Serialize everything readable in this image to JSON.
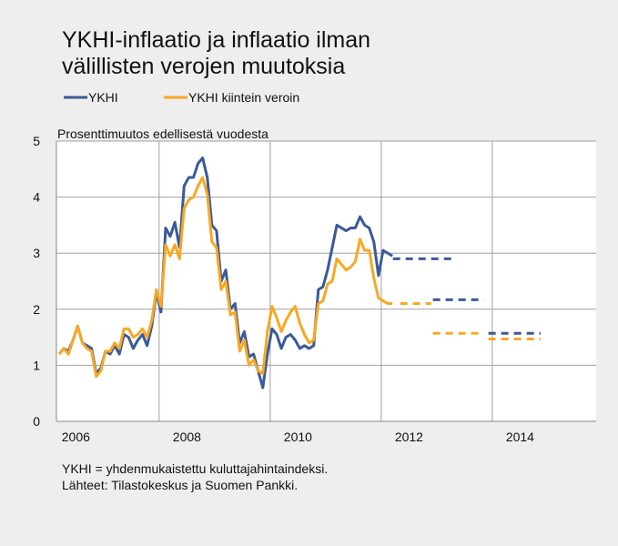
{
  "chart_data": {
    "type": "line",
    "title": [
      "YKHI-inflaatio ja inflaatio ilman",
      "välillisten verojen muutoksia"
    ],
    "y_axis_label": "Prosenttimuutos edellisestä vuodesta",
    "notes": [
      "YKHI = yhdenmukaistettu kuluttajahintaindeksi.",
      "Lähteet: Tilastokeskus ja Suomen Pankki."
    ],
    "x": [
      2006.2,
      2006.283,
      2006.367,
      2006.45,
      2006.533,
      2006.617,
      2006.7,
      2006.783,
      2006.867,
      2006.95,
      2007.033,
      2007.117,
      2007.2,
      2007.283,
      2007.367,
      2007.45,
      2007.533,
      2007.617,
      2007.7,
      2007.783,
      2007.867,
      2007.95,
      2008.033,
      2008.117,
      2008.2,
      2008.283,
      2008.367,
      2008.45,
      2008.533,
      2008.617,
      2008.7,
      2008.783,
      2008.867,
      2008.95,
      2009.033,
      2009.117,
      2009.2,
      2009.283,
      2009.367,
      2009.45,
      2009.533,
      2009.617,
      2009.7,
      2009.783,
      2009.867,
      2009.95,
      2010.033,
      2010.117,
      2010.2,
      2010.283,
      2010.367,
      2010.45,
      2010.533,
      2010.617,
      2010.7,
      2010.783,
      2010.867,
      2010.95,
      2011.033,
      2011.117,
      2011.2,
      2011.283,
      2011.367,
      2011.45,
      2011.533,
      2011.617,
      2011.7,
      2011.783,
      2011.867,
      2011.95,
      2012.033,
      2012.117,
      2012.2
    ],
    "series": [
      {
        "name": "YKHI",
        "color": "#3a5a98",
        "values": [
          1.2,
          1.3,
          1.25,
          1.45,
          1.7,
          1.4,
          1.35,
          1.3,
          0.85,
          0.95,
          1.25,
          1.2,
          1.35,
          1.2,
          1.55,
          1.5,
          1.3,
          1.45,
          1.55,
          1.35,
          1.7,
          2.3,
          1.95,
          3.45,
          3.3,
          3.55,
          3.1,
          4.2,
          4.35,
          4.35,
          4.6,
          4.7,
          4.35,
          3.5,
          3.4,
          2.5,
          2.7,
          2.0,
          2.1,
          1.4,
          1.6,
          1.15,
          1.2,
          0.9,
          0.6,
          1.2,
          1.65,
          1.55,
          1.3,
          1.5,
          1.55,
          1.45,
          1.3,
          1.35,
          1.3,
          1.35,
          2.35,
          2.4,
          2.7,
          3.1,
          3.5,
          3.45,
          3.4,
          3.45,
          3.45,
          3.65,
          3.5,
          3.45,
          3.2,
          2.6,
          3.05,
          3.0,
          2.95
        ],
        "forecast": [
          {
            "x": [
              2012.21,
              2013.33
            ],
            "value": 2.9
          },
          {
            "x": [
              2012.93,
              2013.85
            ],
            "value": 2.17
          },
          {
            "x": [
              2013.93,
              2014.87
            ],
            "value": 1.57
          }
        ]
      },
      {
        "name": "YKHI kiintein veroin",
        "color": "#f7a823",
        "values": [
          1.2,
          1.3,
          1.2,
          1.45,
          1.7,
          1.4,
          1.3,
          1.25,
          0.8,
          0.9,
          1.25,
          1.25,
          1.4,
          1.3,
          1.65,
          1.65,
          1.5,
          1.55,
          1.65,
          1.5,
          1.8,
          2.35,
          2.05,
          3.15,
          2.95,
          3.15,
          2.9,
          3.8,
          3.95,
          4.0,
          4.2,
          4.35,
          4.05,
          3.2,
          3.1,
          2.35,
          2.5,
          1.9,
          1.95,
          1.25,
          1.45,
          1.0,
          1.1,
          0.9,
          0.85,
          1.6,
          2.05,
          1.85,
          1.6,
          1.8,
          1.95,
          2.05,
          1.75,
          1.55,
          1.4,
          1.45,
          2.1,
          2.15,
          2.45,
          2.5,
          2.9,
          2.8,
          2.7,
          2.75,
          2.85,
          3.25,
          3.05,
          3.05,
          2.55,
          2.2,
          2.15,
          2.1,
          2.1
        ],
        "forecast": [
          {
            "x": [
              2012.34,
              2012.9
            ],
            "value": 2.1
          },
          {
            "x": [
              2012.93,
              2013.85
            ],
            "value": 1.57
          },
          {
            "x": [
              2013.93,
              2014.87
            ],
            "value": 1.47
          }
        ]
      }
    ],
    "xlim": [
      2006.15,
      2015.87
    ],
    "xticks": [
      {
        "value": 2006.5,
        "label": "2006"
      },
      {
        "value": 2008.5,
        "label": "2008"
      },
      {
        "value": 2010.5,
        "label": "2010"
      },
      {
        "value": 2012.5,
        "label": "2012"
      },
      {
        "value": 2014.5,
        "label": "2014"
      }
    ],
    "xgrid": [
      2008,
      2010,
      2012,
      2014
    ],
    "ylim": [
      0,
      5
    ],
    "yticks": [
      0,
      1,
      2,
      3,
      4,
      5
    ],
    "grid": true
  }
}
